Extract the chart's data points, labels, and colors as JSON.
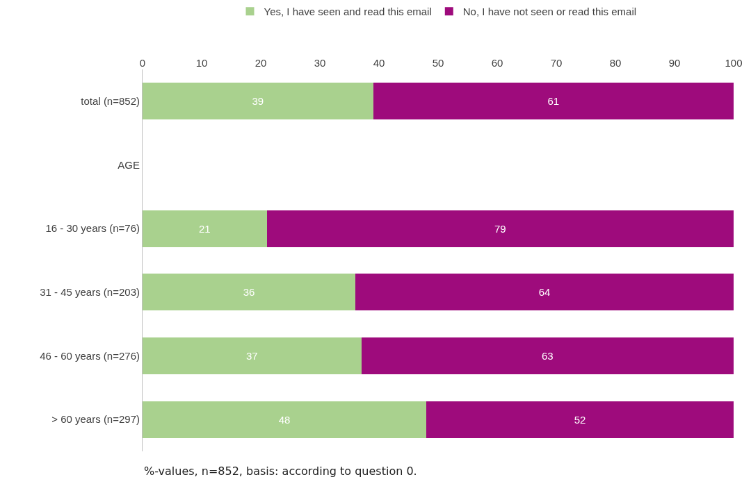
{
  "chart_data": {
    "type": "bar",
    "orientation": "horizontal",
    "stacked": true,
    "categories": [
      "total (n=852)",
      "AGE",
      "16 - 30 years (n=76)",
      "31 - 45 years (n=203)",
      "46 - 60 years (n=276)",
      "> 60 years (n=297)"
    ],
    "series": [
      {
        "name": "Yes, I have seen and read this email",
        "color": "#a9d18e",
        "values": [
          39,
          null,
          21,
          36,
          37,
          48
        ]
      },
      {
        "name": "No, I have not seen or read this email",
        "color": "#9e0b7c",
        "values": [
          61,
          null,
          79,
          64,
          63,
          52
        ]
      }
    ],
    "xlim": [
      0,
      100
    ],
    "xticks": [
      0,
      10,
      20,
      30,
      40,
      50,
      60,
      70,
      80,
      90,
      100
    ],
    "data_labels": true,
    "legend": "top",
    "annotations": [
      "%-values, n=852, basis: according to question 0."
    ]
  }
}
